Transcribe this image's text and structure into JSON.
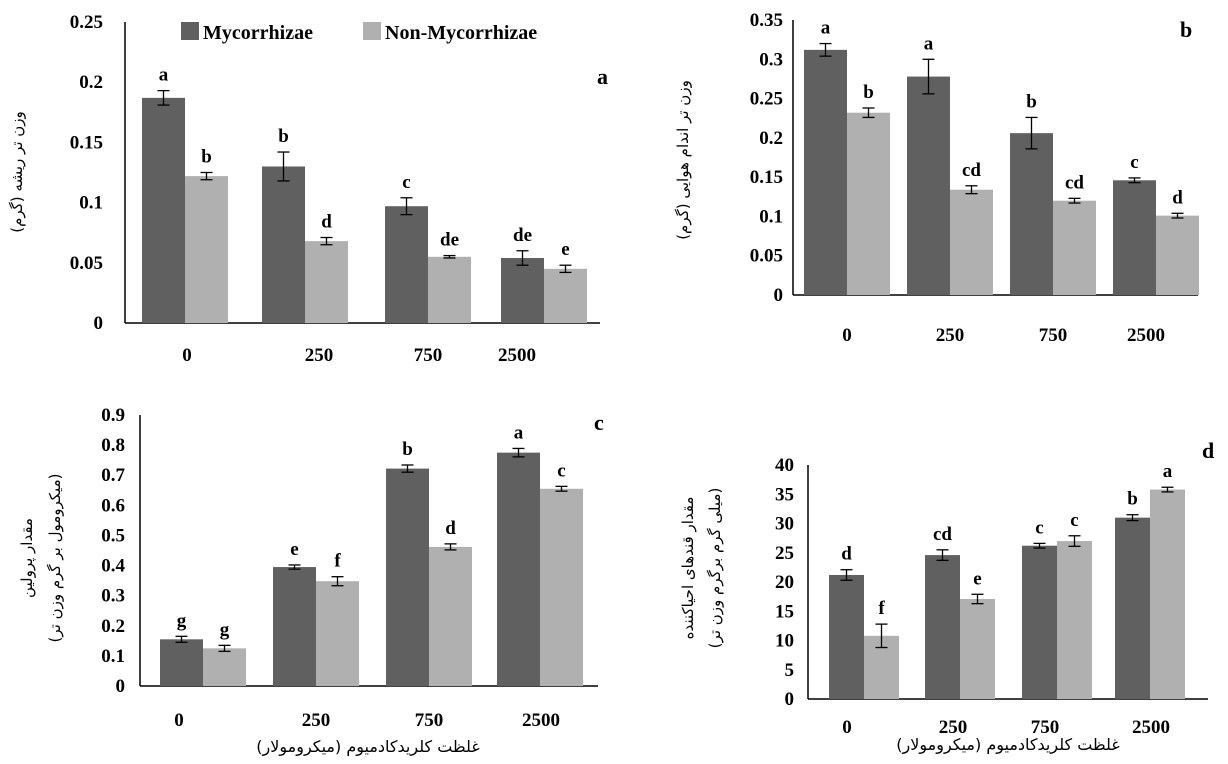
{
  "legend": {
    "items": [
      {
        "name": "Mycorrhizae",
        "color": "#606060"
      },
      {
        "name": "Non-Mycorrhizae",
        "color": "#b0b0b0"
      }
    ]
  },
  "chart_data": [
    {
      "panel": "a",
      "type": "bar",
      "categories": [
        "0",
        "250",
        "750",
        "2500"
      ],
      "ylabel": "وزن تر ریشه (گرم)",
      "xlabel": "",
      "ylim": [
        0,
        0.25
      ],
      "yticks": [
        "0",
        "0.05",
        "0.1",
        "0.15",
        "0.2",
        "0.25"
      ],
      "series": [
        {
          "name": "Mycorrhizae",
          "values": [
            0.187,
            0.13,
            0.097,
            0.054
          ],
          "errors": [
            0.006,
            0.012,
            0.007,
            0.006
          ],
          "letters": [
            "a",
            "b",
            "c",
            "de"
          ]
        },
        {
          "name": "Non-Mycorrhizae",
          "values": [
            0.122,
            0.068,
            0.055,
            0.045
          ],
          "errors": [
            0.003,
            0.003,
            0.001,
            0.003
          ],
          "letters": [
            "b",
            "d",
            "de",
            "e"
          ]
        }
      ]
    },
    {
      "panel": "b",
      "type": "bar",
      "categories": [
        "0",
        "250",
        "750",
        "2500"
      ],
      "ylabel": "وزن تر اندام هوایی (گرم)",
      "xlabel": "",
      "ylim": [
        0,
        0.35
      ],
      "yticks": [
        "0",
        "0.05",
        "0.1",
        "0.15",
        "0.2",
        "0.25",
        "0.3",
        "0.35"
      ],
      "series": [
        {
          "name": "Mycorrhizae",
          "values": [
            0.312,
            0.278,
            0.206,
            0.146
          ],
          "errors": [
            0.008,
            0.022,
            0.02,
            0.003
          ],
          "letters": [
            "a",
            "a",
            "b",
            "c"
          ]
        },
        {
          "name": "Non-Mycorrhizae",
          "values": [
            0.232,
            0.134,
            0.12,
            0.101
          ],
          "errors": [
            0.006,
            0.005,
            0.003,
            0.003
          ],
          "letters": [
            "b",
            "cd",
            "cd",
            "d"
          ]
        }
      ]
    },
    {
      "panel": "c",
      "type": "bar",
      "categories": [
        "0",
        "250",
        "750",
        "2500"
      ],
      "ylabel": "مقدار پرولین",
      "ylabel2": "(میکرومول بر گرم وزن تر)",
      "xlabel": "غلظت کلریدکادمیوم (میکرومولار)",
      "ylim": [
        0,
        0.9
      ],
      "yticks": [
        "0",
        "0.1",
        "0.2",
        "0.3",
        "0.4",
        "0.5",
        "0.6",
        "0.7",
        "0.8",
        "0.9"
      ],
      "series": [
        {
          "name": "Mycorrhizae",
          "values": [
            0.155,
            0.395,
            0.722,
            0.775
          ],
          "errors": [
            0.01,
            0.007,
            0.012,
            0.014
          ],
          "letters": [
            "g",
            "e",
            "b",
            "a"
          ]
        },
        {
          "name": "Non-Mycorrhizae",
          "values": [
            0.125,
            0.348,
            0.462,
            0.655
          ],
          "errors": [
            0.01,
            0.015,
            0.01,
            0.008
          ],
          "letters": [
            "g",
            "f",
            "d",
            "c"
          ]
        }
      ]
    },
    {
      "panel": "d",
      "type": "bar",
      "categories": [
        "0",
        "250",
        "750",
        "2500"
      ],
      "ylabel": "مقدار قندهای احیاکننده",
      "ylabel2": "(میلی گرم برگرم وزن تر)",
      "xlabel": "غلظت کلریدکادمیوم (میکرومولار)",
      "ylim": [
        0,
        40
      ],
      "yticks": [
        "0",
        "5",
        "10",
        "15",
        "20",
        "25",
        "30",
        "35",
        "40"
      ],
      "series": [
        {
          "name": "Mycorrhizae",
          "values": [
            21.2,
            24.6,
            26.2,
            31.0
          ],
          "errors": [
            0.9,
            0.9,
            0.4,
            0.5
          ],
          "letters": [
            "d",
            "cd",
            "c",
            "b"
          ]
        },
        {
          "name": "Non-Mycorrhizae",
          "values": [
            10.8,
            17.1,
            27.0,
            35.8
          ],
          "errors": [
            2.0,
            0.8,
            0.9,
            0.4
          ],
          "letters": [
            "f",
            "e",
            "c",
            "a"
          ]
        }
      ]
    }
  ]
}
